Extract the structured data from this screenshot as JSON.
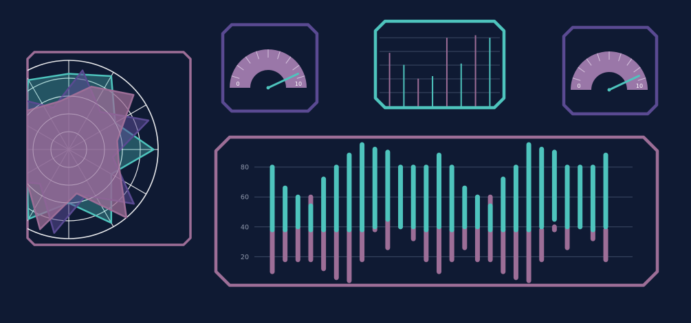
{
  "colors": {
    "background": "#0f1a33",
    "frame_mauve": "#9d6e97",
    "frame_violet": "#5a4a92",
    "frame_teal": "#4ec4bd",
    "teal": "#4ec4bd",
    "mauve": "#9d6e97",
    "gauge_fill": "#9a77a8",
    "grid": "#3d4a66",
    "axis_text": "#8f97ab"
  },
  "chart_data": [
    {
      "type": "radar",
      "title": "",
      "rings": 5,
      "spokes": 12,
      "series": [
        {
          "color": "#4ec4bd",
          "opacity": 0.35,
          "values": [
            0.85,
            0.95,
            0.6,
            0.95,
            0.55,
            0.95,
            0.6,
            0.9,
            0.55,
            0.95,
            0.6,
            0.9
          ]
        },
        {
          "color": "#5a4a92",
          "opacity": 0.55,
          "values": [
            0.9,
            0.55,
            0.95,
            0.5,
            0.95,
            0.55,
            0.95,
            0.5,
            0.95,
            0.55,
            0.95,
            0.5
          ]
        },
        {
          "color": "#9d6e97",
          "opacity": 0.75,
          "values": [
            0.75,
            0.95,
            0.55,
            0.6,
            1.0,
            0.5,
            0.95,
            0.6,
            0.55,
            0.95,
            0.6,
            0.55
          ]
        }
      ]
    },
    {
      "type": "gauge",
      "min_label": "0",
      "max_label": "10",
      "min": 0,
      "max": 10,
      "value": 8.6
    },
    {
      "type": "bar",
      "title": "",
      "values": [
        8.5,
        6.6,
        4.4,
        4.8,
        10.9,
        6.8,
        11.3,
        10.9
      ]
    },
    {
      "type": "gauge",
      "min_label": "0",
      "max_label": "10",
      "min": 0,
      "max": 10,
      "value": 8.6
    },
    {
      "type": "bar",
      "subtype": "range",
      "ylim": [
        0,
        100
      ],
      "yticks": [
        "20",
        "40",
        "60",
        "80"
      ],
      "series": [
        {
          "name": "",
          "color": "#4ec4bd",
          "ranges": [
            [
              38,
              80
            ],
            [
              38,
              66
            ],
            [
              40,
              60
            ],
            [
              38,
              54
            ],
            [
              38,
              72
            ],
            [
              38,
              80
            ],
            [
              38,
              88
            ],
            [
              38,
              95
            ],
            [
              40,
              92
            ],
            [
              45,
              90
            ],
            [
              40,
              80
            ],
            [
              40,
              80
            ],
            [
              38,
              80
            ],
            [
              40,
              88
            ],
            [
              38,
              80
            ],
            [
              40,
              66
            ],
            [
              40,
              60
            ],
            [
              38,
              54
            ],
            [
              38,
              72
            ],
            [
              38,
              80
            ],
            [
              38,
              95
            ],
            [
              40,
              92
            ],
            [
              45,
              90
            ],
            [
              40,
              80
            ],
            [
              40,
              80
            ],
            [
              38,
              80
            ],
            [
              40,
              88
            ]
          ]
        },
        {
          "name": "",
          "color": "#9d6e97",
          "ranges": [
            [
              10,
              38
            ],
            [
              18,
              38
            ],
            [
              18,
              40
            ],
            [
              18,
              60
            ],
            [
              12,
              38
            ],
            [
              6,
              38
            ],
            [
              4,
              38
            ],
            [
              18,
              38
            ],
            [
              38,
              40
            ],
            [
              26,
              45
            ],
            [
              40,
              40
            ],
            [
              32,
              40
            ],
            [
              18,
              38
            ],
            [
              10,
              40
            ],
            [
              18,
              38
            ],
            [
              26,
              40
            ],
            [
              18,
              60
            ],
            [
              18,
              60
            ],
            [
              10,
              38
            ],
            [
              6,
              60
            ],
            [
              4,
              38
            ],
            [
              18,
              38
            ],
            [
              38,
              40
            ],
            [
              26,
              45
            ],
            [
              40,
              40
            ],
            [
              32,
              40
            ],
            [
              18,
              38
            ]
          ]
        }
      ]
    }
  ]
}
